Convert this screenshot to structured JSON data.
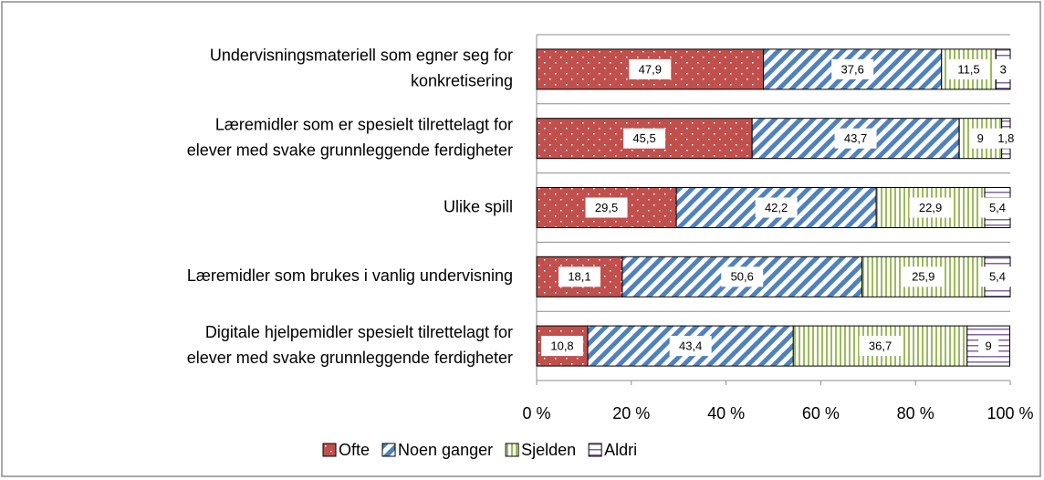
{
  "chart_data": {
    "type": "stacked_bar_horizontal",
    "categories": [
      [
        "Undervisningsmateriell som egner seg for",
        "konkretisering"
      ],
      [
        "Læremidler som er spesielt tilrettelagt for",
        "elever med svake grunnleggende ferdigheter"
      ],
      [
        "Ulike spill"
      ],
      [
        "Læremidler som brukes i vanlig undervisning"
      ],
      [
        "Digitale hjelpemidler spesielt tilrettelagt for",
        "elever med svake grunnleggende ferdigheter"
      ]
    ],
    "series": [
      {
        "name": "Ofte",
        "color": "#c0504d",
        "pattern": "dots",
        "values": [
          47.9,
          45.5,
          29.5,
          18.1,
          10.8
        ],
        "value_labels": [
          "47,9",
          "45,5",
          "29,5",
          "18,1",
          "10,8"
        ]
      },
      {
        "name": "Noen ganger",
        "color": "#4f81bd",
        "pattern": "diagonal",
        "values": [
          37.6,
          43.7,
          42.2,
          50.6,
          43.4
        ],
        "value_labels": [
          "37,6",
          "43,7",
          "42,2",
          "50,6",
          "43,4"
        ]
      },
      {
        "name": "Sjelden",
        "color": "#9bbb59",
        "pattern": "vertical",
        "values": [
          11.5,
          9,
          22.9,
          25.9,
          36.7
        ],
        "value_labels": [
          "11,5",
          "9",
          "22,9",
          "25,9",
          "36,7"
        ]
      },
      {
        "name": "Aldri",
        "color": "#8064a2",
        "pattern": "horizontal",
        "values": [
          3,
          1.8,
          5.4,
          5.4,
          9
        ],
        "value_labels": [
          "3",
          "1,8",
          "5,4",
          "5,4",
          "9"
        ]
      }
    ],
    "xlim": [
      0,
      100
    ],
    "xticks": [
      {
        "value": 0,
        "label": "0 %"
      },
      {
        "value": 20,
        "label": "20 %"
      },
      {
        "value": 40,
        "label": "40 %"
      },
      {
        "value": 60,
        "label": "60 %"
      },
      {
        "value": 80,
        "label": "80 %"
      },
      {
        "value": 100,
        "label": "100 %"
      }
    ],
    "grid": true,
    "legend": "bottom"
  }
}
